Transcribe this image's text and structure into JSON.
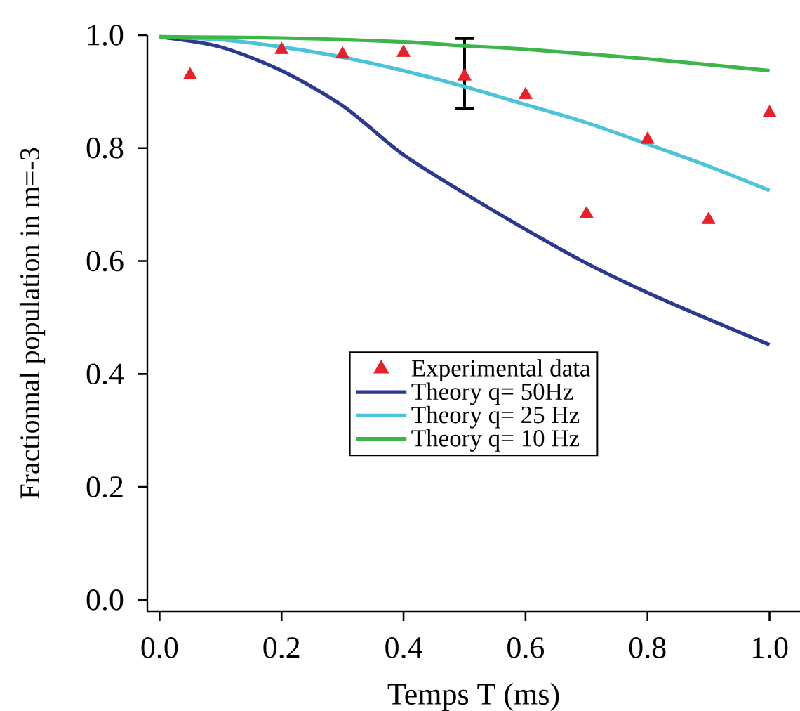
{
  "chart_data": {
    "type": "line",
    "xlabel": "Temps T (ms)",
    "ylabel": "Fractionnal population in m=-3",
    "xlim": [
      -0.02,
      1.05
    ],
    "ylim": [
      -0.02,
      1.0
    ],
    "xticks": [
      {
        "value": 0,
        "label": "0.0"
      },
      0.2,
      0.4,
      0.6,
      0.8,
      {
        "value": 1,
        "label": "1.0"
      }
    ],
    "yticks": [
      {
        "value": 0,
        "label": "0.0"
      },
      0.2,
      0.4,
      0.6,
      0.8,
      {
        "value": 1,
        "label": "1.0"
      }
    ],
    "legend": "center",
    "grid": false,
    "series": [
      {
        "name": "Experimental data",
        "type": "scatter",
        "marker": "triangle",
        "color": "#e8202a",
        "x": [
          0.05,
          0.2,
          0.3,
          0.4,
          0.5,
          0.6,
          0.7,
          0.8,
          0.9,
          1.0
        ],
        "values": [
          0.929,
          0.974,
          0.966,
          0.969,
          0.927,
          0.894,
          0.683,
          0.815,
          0.673,
          0.862
        ],
        "errors": [
          null,
          null,
          null,
          null,
          [
            0.87,
            0.994
          ],
          null,
          null,
          null,
          null,
          null
        ]
      },
      {
        "name": "Theory q= 50Hz",
        "color": "#2b3990",
        "x": [
          0,
          0.1,
          0.2,
          0.3,
          0.4,
          0.5,
          0.6,
          0.7,
          0.8,
          0.9,
          1.0
        ],
        "values": [
          0.997,
          0.979,
          0.937,
          0.875,
          0.788,
          0.72,
          0.656,
          0.596,
          0.544,
          0.497,
          0.452
        ]
      },
      {
        "name": "Theory q= 25 Hz",
        "color": "#4cc3d9",
        "x": [
          0,
          0.1,
          0.2,
          0.3,
          0.4,
          0.5,
          0.6,
          0.7,
          0.8,
          0.9,
          1.0
        ],
        "values": [
          0.997,
          0.992,
          0.979,
          0.961,
          0.937,
          0.909,
          0.877,
          0.845,
          0.807,
          0.768,
          0.725
        ]
      },
      {
        "name": "Theory q= 10 Hz",
        "color": "#3cb54a",
        "x": [
          0,
          0.2,
          0.4,
          0.5,
          0.6,
          0.8,
          1.0
        ],
        "values": [
          0.997,
          0.995,
          0.988,
          0.981,
          0.975,
          0.958,
          0.937
        ]
      }
    ]
  }
}
